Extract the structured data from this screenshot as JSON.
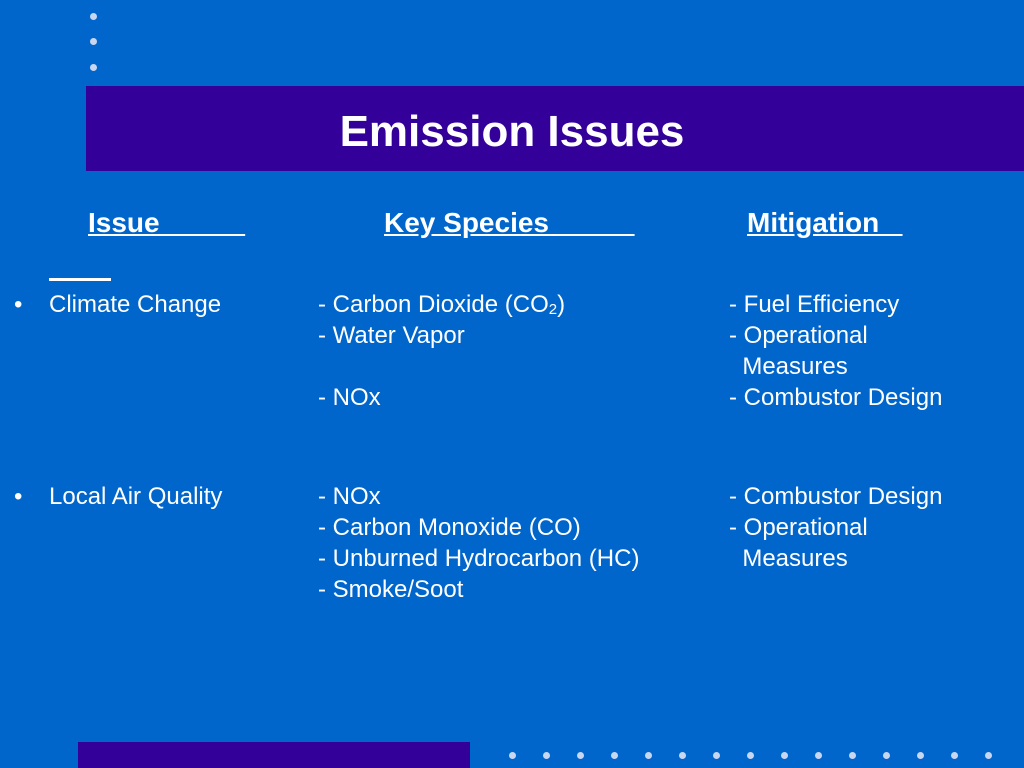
{
  "title": "Emission Issues",
  "headers": {
    "issue": "Issue           ",
    "species": "Key Species           ",
    "mitigation": "Mitigation   "
  },
  "rows": [
    {
      "issue": "Climate Change",
      "species": {
        "co2_prefix": "- Carbon Dioxide (CO",
        "co2_sub": "2",
        "co2_suffix": ")",
        "water": "- Water Vapor",
        "nox": "- NOx"
      },
      "mitigation": [
        "- Fuel Efficiency",
        "- Operational",
        "  Measures",
        "- Combustor Design"
      ]
    },
    {
      "issue": "Local Air Quality",
      "species": [
        "- NOx",
        "- Carbon Monoxide (CO)",
        "- Unburned Hydrocarbon (HC)",
        "- Smoke/Soot"
      ],
      "mitigation": [
        "- Combustor Design",
        "- Operational",
        "  Measures"
      ]
    }
  ],
  "bullet": "•"
}
